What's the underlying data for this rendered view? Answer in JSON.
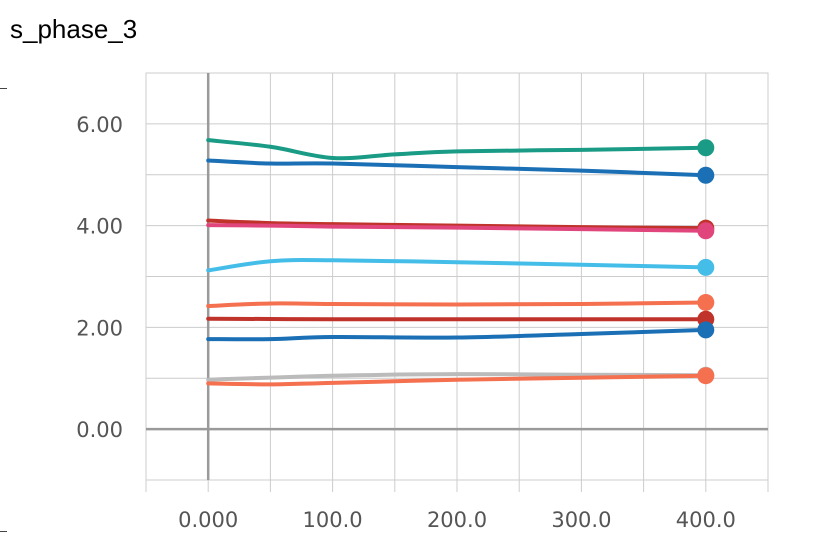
{
  "chart_data": {
    "type": "line",
    "title": "s_phase_3",
    "xlabel": "",
    "ylabel": "",
    "xlim": [
      -50,
      450
    ],
    "ylim": [
      -1.0,
      7.0
    ],
    "grid": true,
    "xticks": [
      "0.000",
      "100.0",
      "200.0",
      "300.0",
      "400.0"
    ],
    "yticks": [
      "0.00",
      "2.00",
      "4.00",
      "6.00"
    ],
    "series": [
      {
        "color": "#1a9b86",
        "x": [
          0,
          50,
          100,
          150,
          200,
          300,
          400
        ],
        "y": [
          5.68,
          5.55,
          5.33,
          5.4,
          5.46,
          5.49,
          5.53
        ]
      },
      {
        "color": "#1a6fb5",
        "x": [
          0,
          50,
          100,
          200,
          300,
          400
        ],
        "y": [
          5.28,
          5.22,
          5.22,
          5.15,
          5.08,
          4.99
        ]
      },
      {
        "color": "#c0332b",
        "x": [
          0,
          50,
          100,
          200,
          300,
          400
        ],
        "y": [
          4.1,
          4.05,
          4.03,
          4.0,
          3.97,
          3.95
        ]
      },
      {
        "color": "#e0457b",
        "x": [
          0,
          50,
          100,
          200,
          300,
          400
        ],
        "y": [
          4.01,
          4.0,
          3.98,
          3.96,
          3.93,
          3.9
        ]
      },
      {
        "color": "#45bde9",
        "x": [
          0,
          50,
          100,
          200,
          300,
          400
        ],
        "y": [
          3.12,
          3.3,
          3.32,
          3.28,
          3.23,
          3.18
        ]
      },
      {
        "color": "#f4704f",
        "x": [
          0,
          50,
          100,
          200,
          300,
          400
        ],
        "y": [
          2.42,
          2.47,
          2.46,
          2.45,
          2.46,
          2.49
        ]
      },
      {
        "color": "#c0332b",
        "x": [
          0,
          100,
          200,
          300,
          400
        ],
        "y": [
          2.17,
          2.16,
          2.16,
          2.16,
          2.16
        ]
      },
      {
        "color": "#1a6fb5",
        "x": [
          0,
          50,
          100,
          200,
          300,
          400
        ],
        "y": [
          1.77,
          1.77,
          1.81,
          1.8,
          1.87,
          1.95
        ]
      },
      {
        "color": "#bbbbbb",
        "x": [
          0,
          100,
          200,
          300,
          400
        ],
        "y": [
          0.97,
          1.05,
          1.08,
          1.07,
          1.06
        ]
      },
      {
        "color": "#f4704f",
        "x": [
          0,
          50,
          100,
          200,
          300,
          400
        ],
        "y": [
          0.9,
          0.88,
          0.91,
          0.97,
          1.01,
          1.05
        ]
      }
    ]
  }
}
